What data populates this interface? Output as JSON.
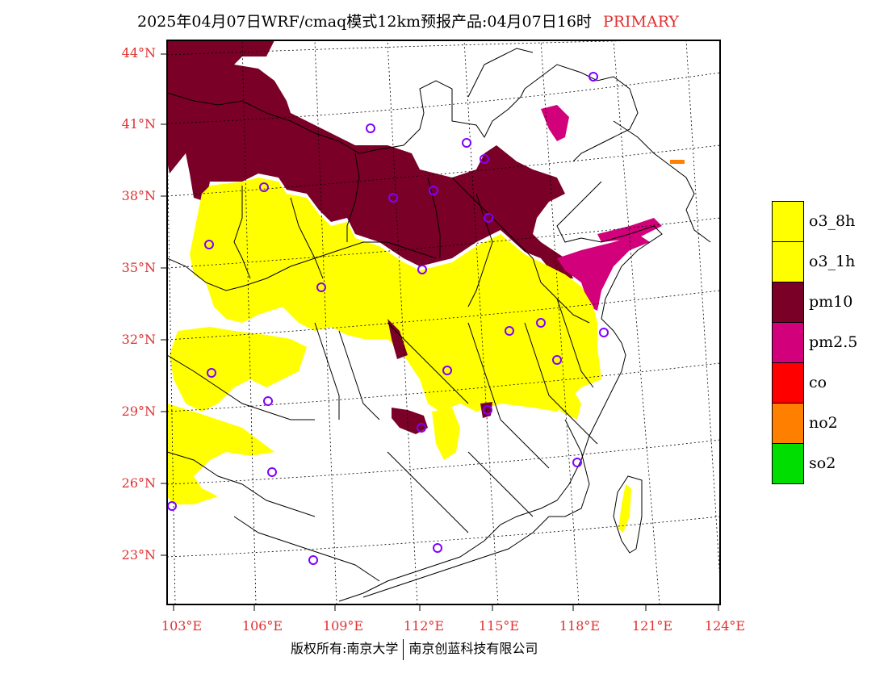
{
  "title": {
    "main": "2025年04月07日WRF/cmaq模式12km预报产品:04月07日16时",
    "tag": "PRIMARY",
    "tag_color": "#e03030"
  },
  "axes": {
    "lat_labels": [
      "44°N",
      "41°N",
      "38°N",
      "35°N",
      "32°N",
      "29°N",
      "26°N",
      "23°N"
    ],
    "lon_labels": [
      "103°E",
      "106°E",
      "109°E",
      "112°E",
      "115°E",
      "118°E",
      "121°E",
      "124°E"
    ],
    "label_color": "#e03030"
  },
  "legend": {
    "items": [
      {
        "label": "o3_8h",
        "color": "#ffff00"
      },
      {
        "label": "o3_1h",
        "color": "#ffff00"
      },
      {
        "label": "pm10",
        "color": "#7a0028"
      },
      {
        "label": "pm2.5",
        "color": "#d2007a"
      },
      {
        "label": "co",
        "color": "#ff0000"
      },
      {
        "label": "no2",
        "color": "#ff7f00"
      },
      {
        "label": "so2",
        "color": "#00dd00"
      }
    ]
  },
  "credit": {
    "left": "版权所有:南京大学",
    "right": "南京创蓝科技有限公司"
  },
  "colors": {
    "o3": "#ffff00",
    "pm10": "#7a0028",
    "pm25": "#d2007a",
    "no2": "#ff7f00",
    "station": "#8000ff"
  }
}
